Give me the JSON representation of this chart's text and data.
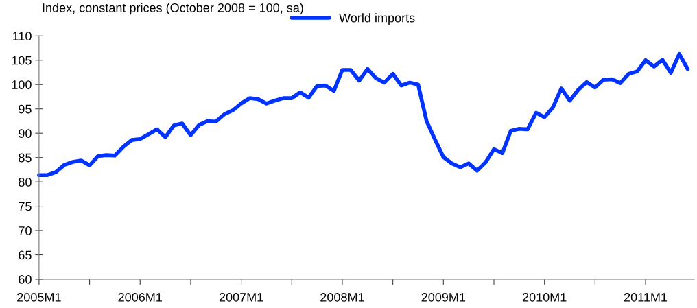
{
  "chart_data": {
    "type": "line",
    "ylabel": "Index, constant prices (October 2008 = 100, sa)",
    "x": [
      "2005-01",
      "2005-02",
      "2005-03",
      "2005-04",
      "2005-05",
      "2005-06",
      "2005-07",
      "2005-08",
      "2005-09",
      "2005-10",
      "2005-11",
      "2005-12",
      "2006-01",
      "2006-02",
      "2006-03",
      "2006-04",
      "2006-05",
      "2006-06",
      "2006-07",
      "2006-08",
      "2006-09",
      "2006-10",
      "2006-11",
      "2006-12",
      "2007-01",
      "2007-02",
      "2007-03",
      "2007-04",
      "2007-05",
      "2007-06",
      "2007-07",
      "2007-08",
      "2007-09",
      "2007-10",
      "2007-11",
      "2007-12",
      "2008-01",
      "2008-02",
      "2008-03",
      "2008-04",
      "2008-05",
      "2008-06",
      "2008-07",
      "2008-08",
      "2008-09",
      "2008-10",
      "2008-11",
      "2008-12",
      "2009-01",
      "2009-02",
      "2009-03",
      "2009-04",
      "2009-05",
      "2009-06",
      "2009-07",
      "2009-08",
      "2009-09",
      "2009-10",
      "2009-11",
      "2009-12",
      "2010-01",
      "2010-02",
      "2010-03",
      "2010-04",
      "2010-05",
      "2010-06",
      "2010-07",
      "2010-08",
      "2010-09",
      "2010-10",
      "2010-11",
      "2010-12",
      "2011-01",
      "2011-02",
      "2011-03",
      "2011-04",
      "2011-05",
      "2011-06"
    ],
    "series": [
      {
        "name": "World imports",
        "color": "#0033ff",
        "values": [
          81.4,
          81.4,
          82,
          83.5,
          84.1,
          84.4,
          83.4,
          85.3,
          85.5,
          85.4,
          87.2,
          88.6,
          88.8,
          89.8,
          90.8,
          89.2,
          91.6,
          92,
          89.6,
          91.7,
          92.5,
          92.4,
          93.9,
          94.7,
          96.1,
          97.2,
          97,
          96.1,
          96.7,
          97.2,
          97.2,
          98.4,
          97.3,
          99.7,
          99.8,
          98.7,
          103,
          103,
          100.8,
          103.2,
          101.3,
          100.4,
          102.2,
          99.8,
          100.4,
          100,
          92.5,
          88.7,
          85.1,
          83.8,
          83,
          83.8,
          82.3,
          84,
          86.7,
          85.9,
          90.5,
          90.9,
          90.8,
          94.2,
          93.3,
          95.3,
          99.2,
          96.7,
          98.9,
          100.5,
          99.4,
          101,
          101.1,
          100.3,
          102.2,
          102.7,
          105,
          103.7,
          105.1,
          102.4,
          106.3,
          103.2
        ]
      }
    ],
    "xlim": [
      "2005-01-01",
      "2011-06-25"
    ],
    "xticks": [
      {
        "value": "2005-01",
        "label": "2005M1"
      },
      {
        "value": "2005-07",
        "label": null
      },
      {
        "value": "2006-01",
        "label": "2006M1"
      },
      {
        "value": "2006-07",
        "label": null
      },
      {
        "value": "2007-01",
        "label": "2007M1"
      },
      {
        "value": "2007-07",
        "label": null
      },
      {
        "value": "2008-01",
        "label": "2008M1"
      },
      {
        "value": "2008-07",
        "label": null
      },
      {
        "value": "2009-01",
        "label": "2009M1"
      },
      {
        "value": "2009-07",
        "label": null
      },
      {
        "value": "2010-01",
        "label": "2010M1"
      },
      {
        "value": "2010-07",
        "label": null
      },
      {
        "value": "2011-01",
        "label": "2011M1"
      }
    ],
    "ylim": [
      60,
      110
    ],
    "yticks": [
      60,
      65,
      70,
      75,
      80,
      85,
      90,
      95,
      100,
      105,
      110
    ],
    "grid": false,
    "legend": "top",
    "marker": "none",
    "line_style": "solid"
  }
}
